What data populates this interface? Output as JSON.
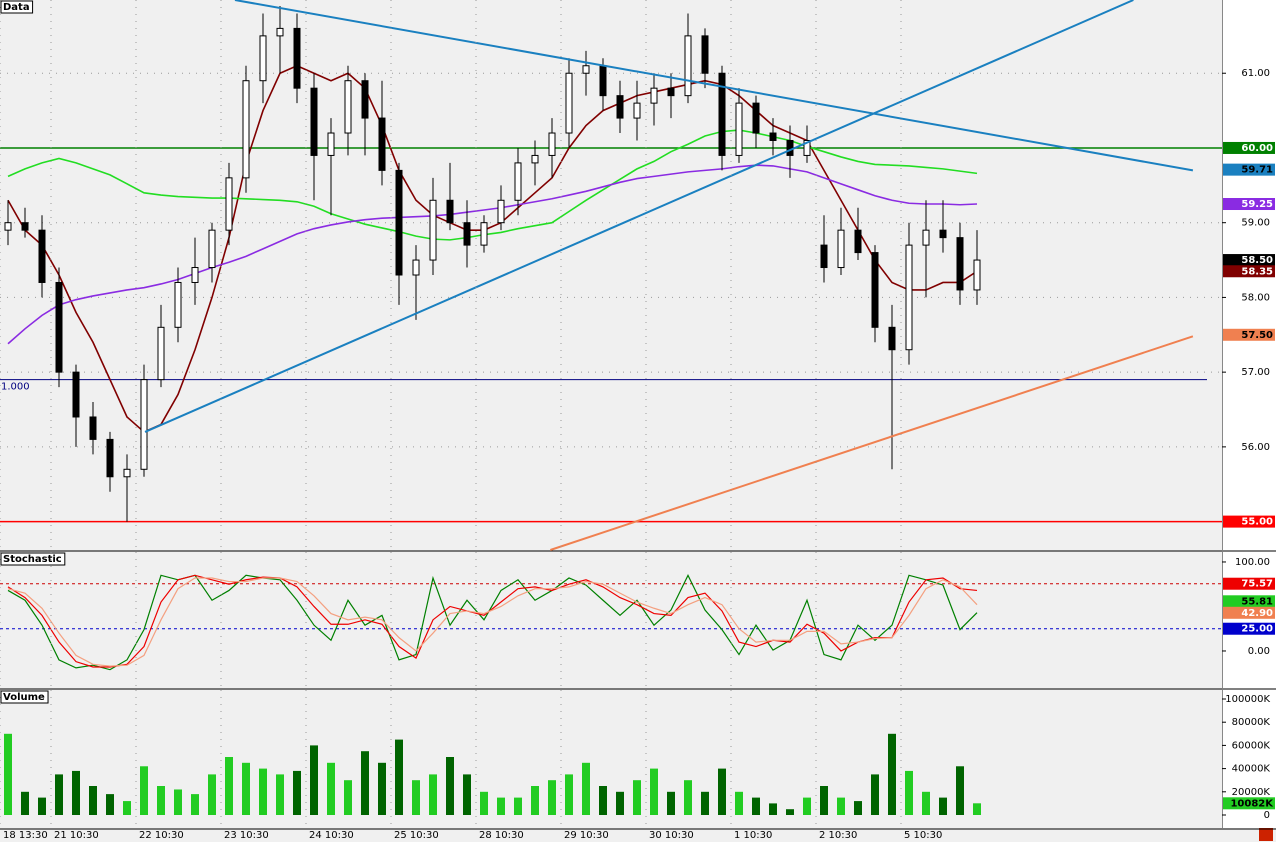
{
  "chart_data": [
    {
      "type": "candlestick",
      "title": "Data",
      "ylim": [
        54.62,
        61.98
      ],
      "yticks": [
        {
          "value": 56,
          "label": "56.00"
        },
        {
          "value": 57,
          "label": "57.00"
        },
        {
          "value": 58,
          "label": "58.00"
        },
        {
          "value": 59,
          "label": "59.00"
        },
        {
          "value": 61,
          "label": "61.00"
        }
      ],
      "grid": true,
      "up_color": "#ffffff",
      "down_color": "#000000",
      "wick_color": "#000000",
      "open": [
        58.9,
        59.0,
        58.9,
        58.2,
        57.0,
        56.4,
        56.1,
        55.6,
        55.7,
        56.9,
        57.6,
        58.2,
        58.4,
        58.9,
        59.6,
        60.9,
        61.5,
        61.6,
        60.8,
        59.9,
        60.2,
        60.9,
        60.4,
        59.7,
        58.3,
        58.5,
        59.3,
        59.0,
        58.7,
        59.0,
        59.3,
        59.8,
        59.9,
        60.2,
        61.0,
        61.1,
        60.7,
        60.4,
        60.6,
        60.8,
        60.7,
        61.5,
        61.0,
        59.9,
        60.6,
        60.2,
        60.1,
        59.9,
        58.7,
        58.4,
        58.9,
        58.6,
        57.6,
        57.3,
        58.7,
        58.9,
        58.8,
        58.1
      ],
      "high": [
        59.3,
        59.2,
        59.1,
        58.4,
        57.1,
        56.6,
        56.2,
        55.9,
        57.1,
        57.9,
        58.4,
        58.8,
        59.0,
        59.8,
        61.1,
        61.8,
        61.9,
        61.8,
        61.0,
        60.4,
        61.1,
        61.0,
        60.9,
        59.8,
        58.7,
        59.6,
        59.8,
        59.3,
        59.1,
        59.5,
        60.0,
        60.1,
        60.4,
        61.2,
        61.3,
        61.2,
        60.9,
        60.9,
        61.0,
        61.0,
        61.8,
        61.6,
        61.1,
        60.8,
        60.7,
        60.4,
        60.3,
        60.3,
        59.1,
        59.2,
        59.2,
        58.7,
        57.9,
        59.0,
        59.3,
        59.3,
        59.0,
        58.9
      ],
      "low": [
        58.7,
        58.8,
        58.0,
        56.8,
        56.0,
        55.9,
        55.4,
        55.0,
        55.6,
        56.8,
        57.4,
        57.9,
        58.2,
        58.7,
        59.4,
        60.6,
        61.0,
        60.6,
        59.3,
        59.1,
        59.9,
        59.9,
        59.5,
        57.9,
        57.7,
        58.3,
        58.9,
        58.4,
        58.6,
        58.9,
        59.1,
        59.5,
        59.6,
        60.0,
        60.7,
        60.5,
        60.2,
        60.1,
        60.3,
        60.4,
        60.6,
        60.8,
        59.7,
        59.8,
        60.0,
        59.9,
        59.6,
        59.8,
        58.2,
        58.3,
        58.5,
        57.4,
        55.7,
        57.1,
        58.0,
        58.6,
        57.9,
        57.9
      ],
      "close": [
        59.0,
        58.9,
        58.2,
        57.0,
        56.4,
        56.1,
        55.6,
        55.7,
        56.9,
        57.6,
        58.2,
        58.4,
        58.9,
        59.6,
        60.9,
        61.5,
        61.6,
        60.8,
        59.9,
        60.2,
        60.9,
        60.4,
        59.7,
        58.3,
        58.5,
        59.3,
        59.0,
        58.7,
        59.0,
        59.3,
        59.8,
        59.9,
        60.2,
        61.0,
        61.1,
        60.7,
        60.4,
        60.6,
        60.8,
        60.7,
        61.5,
        61.0,
        59.9,
        60.6,
        60.2,
        60.1,
        59.9,
        60.1,
        58.4,
        58.9,
        58.6,
        57.6,
        57.3,
        58.7,
        58.9,
        58.8,
        58.1,
        58.5
      ],
      "moving_averages": [
        {
          "color": "#800000",
          "values": [
            59.3,
            58.9,
            58.7,
            58.3,
            57.8,
            57.4,
            56.9,
            56.4,
            56.2,
            56.3,
            56.7,
            57.3,
            58.0,
            58.8,
            59.8,
            60.5,
            61.0,
            61.1,
            61.0,
            60.9,
            61.0,
            60.8,
            60.3,
            59.7,
            59.3,
            59.1,
            59.0,
            58.9,
            58.9,
            59.0,
            59.2,
            59.4,
            59.6,
            60.0,
            60.3,
            60.5,
            60.6,
            60.7,
            60.75,
            60.8,
            60.85,
            60.9,
            60.85,
            60.7,
            60.5,
            60.3,
            60.2,
            60.1,
            59.7,
            59.3,
            58.9,
            58.5,
            58.2,
            58.1,
            58.1,
            58.2,
            58.2,
            58.35
          ]
        },
        {
          "color": "#22dd22",
          "values": [
            59.62,
            59.72,
            59.8,
            59.86,
            59.8,
            59.72,
            59.64,
            59.52,
            59.4,
            59.37,
            59.35,
            59.34,
            59.33,
            59.33,
            59.32,
            59.31,
            59.3,
            59.28,
            59.22,
            59.12,
            59.05,
            58.98,
            58.93,
            58.88,
            58.82,
            58.78,
            58.77,
            58.8,
            58.84,
            58.87,
            58.92,
            58.96,
            59.0,
            59.15,
            59.3,
            59.44,
            59.58,
            59.72,
            59.82,
            59.95,
            60.05,
            60.16,
            60.22,
            60.24,
            60.2,
            60.15,
            60.1,
            60.02,
            59.95,
            59.88,
            59.82,
            59.78,
            59.77,
            59.76,
            59.74,
            59.72,
            59.69,
            59.66
          ]
        },
        {
          "color": "#8a2be2",
          "values": [
            57.38,
            57.58,
            57.76,
            57.9,
            57.97,
            58.02,
            58.06,
            58.1,
            58.13,
            58.18,
            58.24,
            58.32,
            58.4,
            58.47,
            58.55,
            58.65,
            58.75,
            58.85,
            58.92,
            58.97,
            59.01,
            59.04,
            59.06,
            59.07,
            59.08,
            59.09,
            59.11,
            59.14,
            59.17,
            59.2,
            59.24,
            59.28,
            59.32,
            59.37,
            59.42,
            59.48,
            59.54,
            59.59,
            59.62,
            59.65,
            59.68,
            59.7,
            59.72,
            59.75,
            59.77,
            59.76,
            59.72,
            59.68,
            59.6,
            59.52,
            59.44,
            59.36,
            59.3,
            59.26,
            59.25,
            59.25,
            59.24,
            59.25
          ]
        }
      ],
      "hlines": [
        {
          "value": 60,
          "color": "#008000"
        },
        {
          "value": 55,
          "color": "#ff0000"
        },
        {
          "value": 56.9,
          "color": "#000080",
          "label": "1.000"
        }
      ],
      "trendlines": [
        {
          "start": [
            13.35,
            61.98
          ],
          "end": [
            69.7,
            59.7
          ],
          "color": "#1a80c0"
        },
        {
          "start": [
            8.06,
            56.2
          ],
          "end": [
            66.2,
            61.98
          ],
          "color": "#1a80c0"
        },
        {
          "start": [
            31.9,
            54.62
          ],
          "end": [
            69.7,
            57.48
          ],
          "color": "#f08050"
        }
      ],
      "markers": [
        {
          "value": 60,
          "label": "60.00",
          "color": "#008000",
          "text_color": "#ffffff"
        },
        {
          "value": 59.71,
          "label": "59.71",
          "color": "#1a80c0",
          "text_color": "#000000"
        },
        {
          "value": 59.25,
          "label": "59.25",
          "color": "#8a2be2",
          "text_color": "#ffffff"
        },
        {
          "value": 58.5,
          "label": "58.50",
          "color": "#000000",
          "text_color": "#ffffff"
        },
        {
          "value": 58.35,
          "label": "58.35",
          "color": "#800000",
          "text_color": "#ffffff"
        },
        {
          "value": 57.5,
          "label": "57.50",
          "color": "#f08050",
          "text_color": "#000000"
        },
        {
          "value": 55,
          "label": "55.00",
          "color": "#ff0000",
          "text_color": "#ffffff"
        }
      ]
    },
    {
      "type": "line",
      "title": "Stochastic",
      "ylim": [
        -41.6,
        111.2
      ],
      "yticks": [
        {
          "value": 100,
          "label": "100.00"
        },
        {
          "value": 0,
          "label": "0.00"
        }
      ],
      "series": [
        {
          "color": "#008000",
          "values": [
            68,
            57,
            29,
            -10,
            -19,
            -16,
            -21,
            -10,
            24,
            85,
            80,
            85,
            57,
            68,
            85,
            82,
            80,
            57,
            29,
            12,
            57,
            29,
            40,
            -10,
            -4,
            82,
            29,
            57,
            35,
            68,
            80,
            57,
            68,
            82,
            74,
            57,
            40,
            57,
            29,
            46,
            85,
            46,
            24,
            -4,
            29,
            1,
            12,
            57,
            -4,
            -10,
            29,
            12,
            29,
            85,
            80,
            74,
            24,
            43
          ]
        },
        {
          "color": "#ee0000",
          "values": [
            72,
            60,
            40,
            10,
            -12,
            -18,
            -18,
            -15,
            5,
            55,
            80,
            85,
            80,
            75,
            80,
            83,
            82,
            72,
            50,
            30,
            30,
            35,
            30,
            5,
            -8,
            35,
            50,
            45,
            40,
            55,
            70,
            72,
            68,
            75,
            80,
            72,
            60,
            52,
            42,
            40,
            60,
            65,
            45,
            10,
            5,
            12,
            10,
            30,
            20,
            0,
            10,
            15,
            15,
            55,
            80,
            82,
            70,
            68
          ]
        },
        {
          "color": "#f4a080",
          "values": [
            70,
            65,
            48,
            20,
            -5,
            -15,
            -17,
            -16,
            -5,
            35,
            70,
            82,
            82,
            78,
            78,
            82,
            82,
            78,
            62,
            42,
            35,
            38,
            35,
            15,
            0,
            20,
            42,
            45,
            42,
            50,
            62,
            70,
            70,
            72,
            78,
            75,
            65,
            55,
            48,
            42,
            52,
            60,
            52,
            25,
            10,
            12,
            12,
            22,
            22,
            8,
            10,
            14,
            15,
            40,
            70,
            80,
            72,
            52
          ]
        }
      ],
      "hlines": [
        {
          "value": 75.57,
          "color": "#cc0000"
        },
        {
          "value": 25,
          "color": "#0000cc"
        }
      ],
      "markers": [
        {
          "value": 75.57,
          "label": "75.57",
          "color": "#ee0000",
          "text_color": "#ffffff"
        },
        {
          "value": 55.81,
          "label": "55.81",
          "color": "#22cc22",
          "text_color": "#000000"
        },
        {
          "value": 42.9,
          "label": "42.90",
          "color": "#f08050",
          "text_color": "#ffffff"
        },
        {
          "value": 25,
          "label": "25.00",
          "color": "#0000cc",
          "text_color": "#ffffff"
        }
      ]
    },
    {
      "type": "bar",
      "title": "Volume",
      "ylim": [
        -11207,
        107759
      ],
      "yticks": [
        0,
        {
          "value": 20000,
          "label": "20000K"
        },
        {
          "value": 40000,
          "label": "40000K"
        },
        {
          "value": 60000,
          "label": "60000K"
        },
        {
          "value": 80000,
          "label": "80000K"
        },
        {
          "value": 100000,
          "label": "100000K"
        }
      ],
      "up_color": "#22cc22",
      "down_color": "#006400",
      "categories": [
        "18 13:30",
        null,
        null,
        "21 10:30",
        null,
        null,
        null,
        null,
        "22 10:30",
        null,
        null,
        null,
        null,
        "23 10:30",
        null,
        null,
        null,
        null,
        "24 10:30",
        null,
        null,
        null,
        null,
        "25 10:30",
        null,
        null,
        null,
        null,
        "28 10:30",
        null,
        null,
        null,
        null,
        "29 10:30",
        null,
        null,
        null,
        null,
        "30 10:30",
        null,
        null,
        null,
        null,
        "1 10:30",
        null,
        null,
        null,
        null,
        "2 10:30",
        null,
        null,
        null,
        null,
        "5 10:30",
        null,
        null,
        null,
        null
      ],
      "values": [
        70000,
        20000,
        15000,
        35000,
        38000,
        25000,
        18000,
        12000,
        42000,
        25000,
        22000,
        18000,
        35000,
        50000,
        45000,
        40000,
        35000,
        38000,
        60000,
        45000,
        30000,
        55000,
        45000,
        65000,
        30000,
        35000,
        50000,
        35000,
        20000,
        15000,
        15000,
        25000,
        30000,
        35000,
        45000,
        25000,
        20000,
        30000,
        40000,
        20000,
        30000,
        20000,
        40000,
        20000,
        15000,
        10000,
        5000,
        15000,
        25000,
        15000,
        12000,
        35000,
        70000,
        38000,
        20000,
        15000,
        42000,
        10082
      ],
      "markers": [
        {
          "value": 10082,
          "label": "10082K",
          "color": "#22cc22",
          "text_color": "#000000"
        }
      ]
    }
  ]
}
